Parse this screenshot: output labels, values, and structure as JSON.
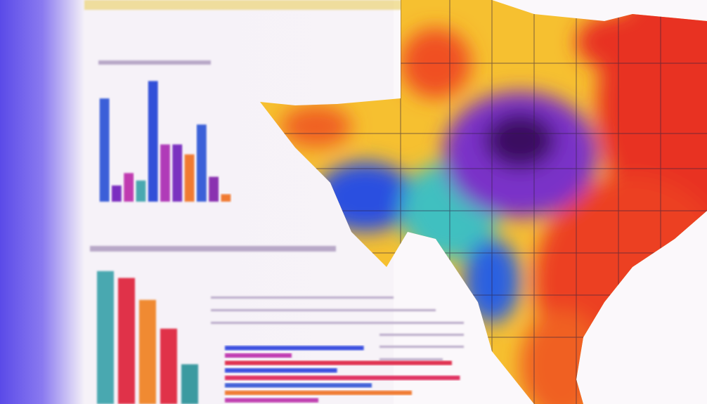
{
  "chart_data": [
    {
      "type": "bar",
      "values": [
        83,
        13,
        23,
        17,
        97,
        46,
        46,
        38,
        62,
        20,
        6
      ],
      "colors": [
        "#3a5fd8",
        "#7a2fc0",
        "#c03ab0",
        "#4aa8b0",
        "#3050d8",
        "#b03ab8",
        "#7a30c0",
        "#f07a30",
        "#3a60d8",
        "#8a30b0",
        "#f07a30"
      ],
      "ylim": [
        0,
        100
      ]
    },
    {
      "type": "bar",
      "values": [
        97,
        92,
        76,
        55,
        29
      ],
      "colors": [
        "#4aa8b0",
        "#e0304a",
        "#f08a30",
        "#e0304a",
        "#3a9aa0"
      ],
      "ylim": [
        0,
        100
      ]
    },
    {
      "type": "barh",
      "values": [
        52,
        25,
        85,
        42,
        88,
        55,
        70,
        35
      ],
      "colors": [
        "#3a50e0",
        "#c03ab0",
        "#e03050",
        "#3a50e0",
        "#e03060",
        "#4060d8",
        "#f07a30",
        "#c040b0"
      ],
      "xlim": [
        0,
        100
      ]
    }
  ]
}
